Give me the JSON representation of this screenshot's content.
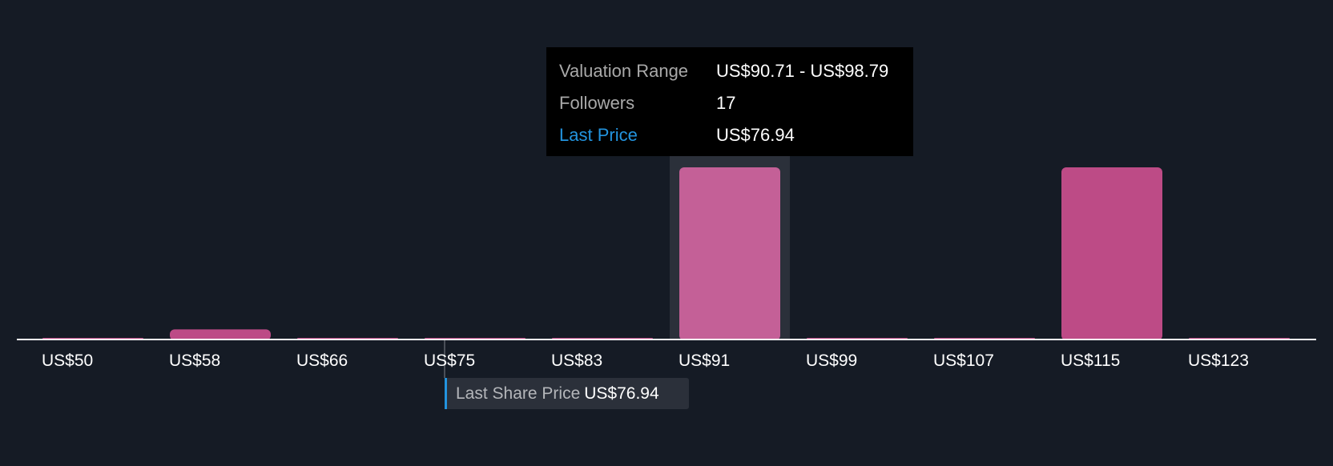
{
  "chart_data": {
    "type": "bar",
    "categories": [
      "US$50",
      "US$58",
      "US$66",
      "US$75",
      "US$83",
      "US$91",
      "US$99",
      "US$107",
      "US$115",
      "US$123"
    ],
    "values": [
      0,
      1,
      0,
      0,
      0,
      17,
      0,
      0,
      17,
      0
    ],
    "ylabel": "Followers",
    "grid": false,
    "highlighted_index": 5,
    "colors": {
      "bar": "#bd4b86",
      "bar_highlight": "#c46097",
      "highlight_band": "#2b303a",
      "background": "#151b25",
      "last_price": "#2394df"
    }
  },
  "tooltip": {
    "rows": [
      {
        "label": "Valuation Range",
        "value": "US$90.71 - US$98.79"
      },
      {
        "label": "Followers",
        "value": "17"
      },
      {
        "label": "Last Price",
        "value": "US$76.94"
      }
    ]
  },
  "last_share_price": {
    "label": "Last Share Price",
    "value": "US$76.94",
    "numeric": 76.94
  }
}
